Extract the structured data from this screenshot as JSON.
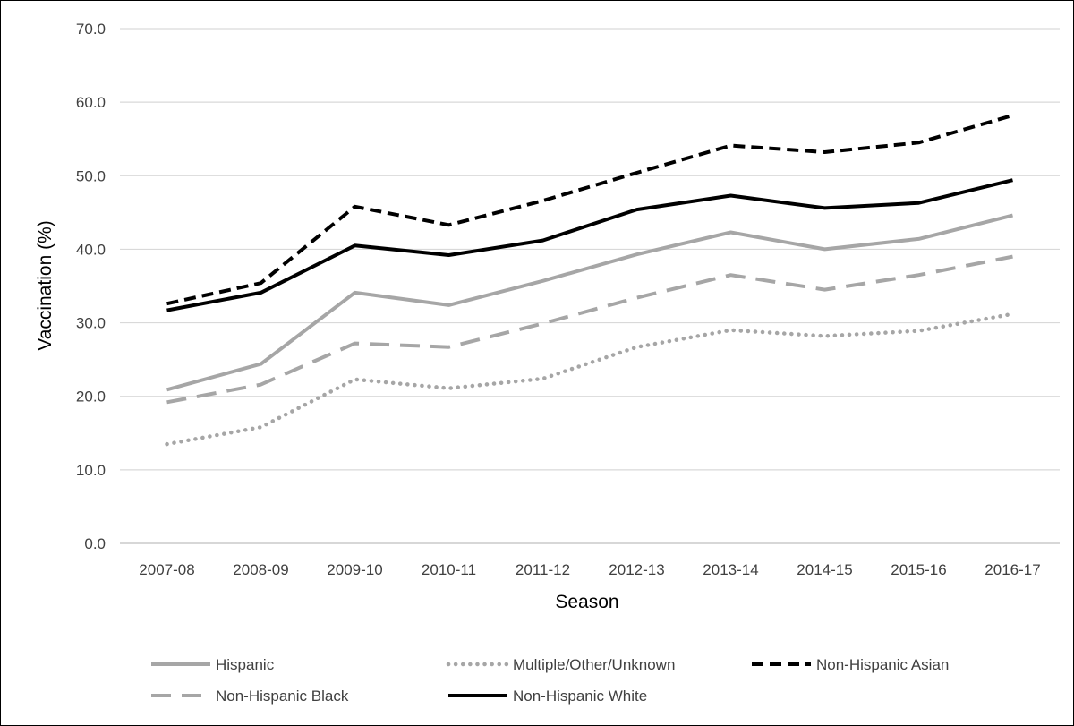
{
  "chart_data": {
    "type": "line",
    "title": "",
    "xlabel": "Season",
    "ylabel": "Vaccination (%)",
    "ylim": [
      0,
      70
    ],
    "yticks": [
      "0.0",
      "10.0",
      "20.0",
      "30.0",
      "40.0",
      "50.0",
      "60.0",
      "70.0"
    ],
    "ytick_values": [
      0,
      10,
      20,
      30,
      40,
      50,
      60,
      70
    ],
    "categories": [
      "2007-08",
      "2008-09",
      "2009-10",
      "2010-11",
      "2011-12",
      "2012-13",
      "2013-14",
      "2014-15",
      "2015-16",
      "2016-17"
    ],
    "grid": "horizontal",
    "legend_position": "bottom",
    "series": [
      {
        "name": "Hispanic",
        "style": "solid",
        "color": "#a6a6a6",
        "values": [
          20.9,
          24.4,
          34.1,
          32.4,
          35.7,
          39.3,
          42.3,
          40.0,
          41.4,
          44.6
        ]
      },
      {
        "name": "Multiple/Other/Unknown",
        "style": "dotted",
        "color": "#a6a6a6",
        "values": [
          13.5,
          15.8,
          22.3,
          21.1,
          22.4,
          26.7,
          29.0,
          28.2,
          28.9,
          31.2
        ]
      },
      {
        "name": "Non-Hispanic Asian",
        "style": "dashed",
        "color": "#000000",
        "values": [
          32.6,
          35.4,
          45.8,
          43.3,
          46.6,
          50.4,
          54.1,
          53.2,
          54.5,
          58.2
        ]
      },
      {
        "name": "Non-Hispanic Black",
        "style": "long-dashed",
        "color": "#a6a6a6",
        "values": [
          19.2,
          21.6,
          27.2,
          26.7,
          29.9,
          33.4,
          36.5,
          34.5,
          36.5,
          39.0
        ]
      },
      {
        "name": "Non-Hispanic White",
        "style": "solid",
        "color": "#000000",
        "values": [
          31.7,
          34.1,
          40.5,
          39.2,
          41.2,
          45.4,
          47.3,
          45.6,
          46.3,
          49.4
        ]
      }
    ]
  }
}
